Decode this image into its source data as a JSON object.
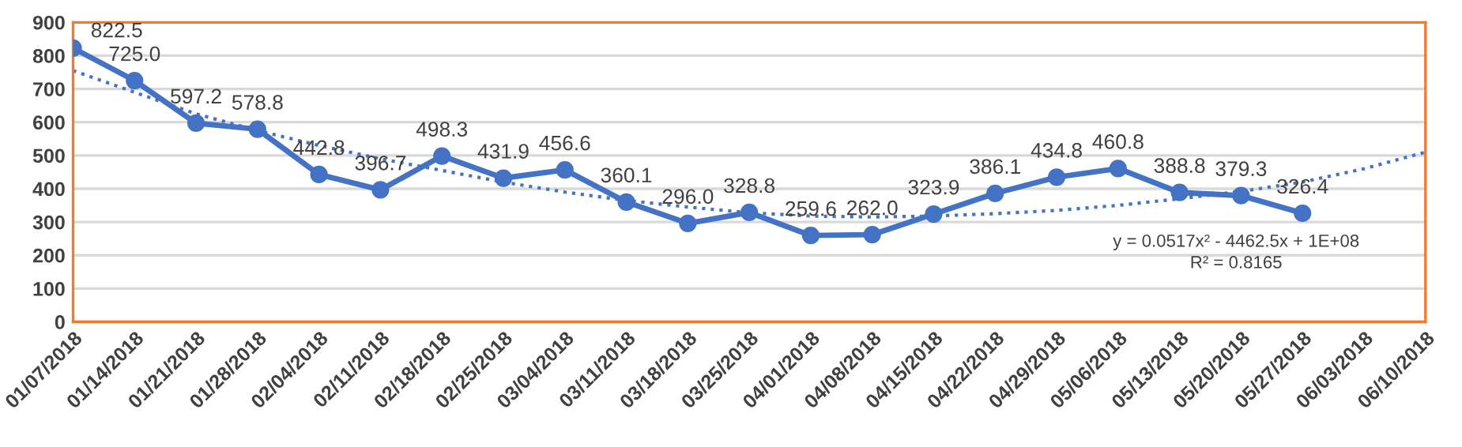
{
  "chart_data": {
    "type": "line",
    "categories": [
      "01/07/2018",
      "01/14/2018",
      "01/21/2018",
      "01/28/2018",
      "02/04/2018",
      "02/11/2018",
      "02/18/2018",
      "02/25/2018",
      "03/04/2018",
      "03/11/2018",
      "03/18/2018",
      "03/25/2018",
      "04/01/2018",
      "04/08/2018",
      "04/15/2018",
      "04/22/2018",
      "04/29/2018",
      "05/06/2018",
      "05/13/2018",
      "05/20/2018",
      "05/27/2018",
      "06/03/2018",
      "06/10/2018"
    ],
    "series": [
      {
        "color": "#4472c4",
        "marker": "circle",
        "line_style": "solid",
        "values": [
          822.5,
          725.0,
          597.2,
          578.8,
          442.8,
          396.7,
          498.3,
          431.9,
          456.6,
          360.1,
          296.0,
          328.8,
          259.6,
          262.0,
          323.9,
          386.1,
          434.8,
          460.8,
          388.8,
          379.3,
          326.4,
          null,
          null
        ],
        "value_labels": [
          "822.5",
          "725.0",
          "597.2",
          "578.8",
          "442.8",
          "396.7",
          "498.3",
          "431.9",
          "456.6",
          "360.1",
          "296.0",
          "328.8",
          "259.6",
          "262.0",
          "323.9",
          "386.1",
          "434.8",
          "460.8",
          "388.8",
          "379.3",
          "326.4",
          null,
          null
        ]
      },
      {
        "type": "line",
        "color": "#4472c4",
        "marker": "none",
        "line_style": "dotted",
        "values": [
          755,
          690,
          625,
          575,
          530,
          490,
          455,
          420,
          390,
          365,
          345,
          328,
          318,
          315,
          318,
          325,
          335,
          350,
          370,
          392,
          420,
          460,
          510
        ]
      }
    ],
    "ylim": [
      0,
      900
    ],
    "yticks": [
      0,
      100,
      200,
      300,
      400,
      500,
      600,
      700,
      800,
      900
    ],
    "grid": "y",
    "legend": false,
    "annotations": [
      "y = 0.0517x² - 4462.5x + 1E+08\nR² = 0.8165"
    ]
  }
}
